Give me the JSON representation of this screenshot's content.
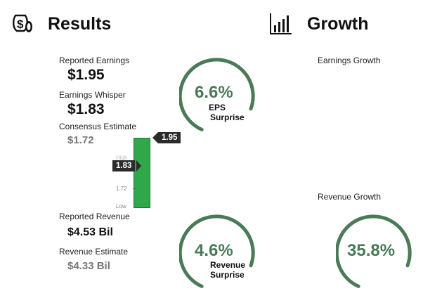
{
  "results": {
    "title": "Results",
    "icon": "money-bag-icon",
    "reported_earnings": {
      "label": "Reported Earnings",
      "value": "$1.95"
    },
    "earnings_whisper": {
      "label": "Earnings Whisper",
      "value": "$1.83"
    },
    "consensus_estimate": {
      "label": "Consensus Estimate",
      "value": "$1.72"
    },
    "reported_revenue": {
      "label": "Reported Revenue",
      "value": "$4.53 Bil"
    },
    "revenue_estimate": {
      "label": "Revenue Estimate",
      "value": "$4.33 Bil"
    }
  },
  "eps_chart": {
    "ticks": {
      "high": "High",
      "mid": "1.72",
      "low": "Low"
    },
    "flags": {
      "reported": "1.95",
      "whisper": "1.83"
    },
    "bar_color": "#2ea84a"
  },
  "eps_surprise": {
    "value": "6.6%",
    "caption_line1": "EPS",
    "caption_line2": "Surprise",
    "arc_color": "#4a7a57"
  },
  "revenue_surprise": {
    "value": "4.6%",
    "caption_line1": "Revenue",
    "caption_line2": "Surprise",
    "arc_color": "#4a7a57"
  },
  "growth": {
    "title": "Growth",
    "icon": "bar-chart-icon",
    "earnings_growth_label": "Earnings Growth",
    "revenue_growth_label": "Revenue Growth",
    "revenue_growth_value": "35.8%",
    "arc_color": "#4a7a57"
  }
}
